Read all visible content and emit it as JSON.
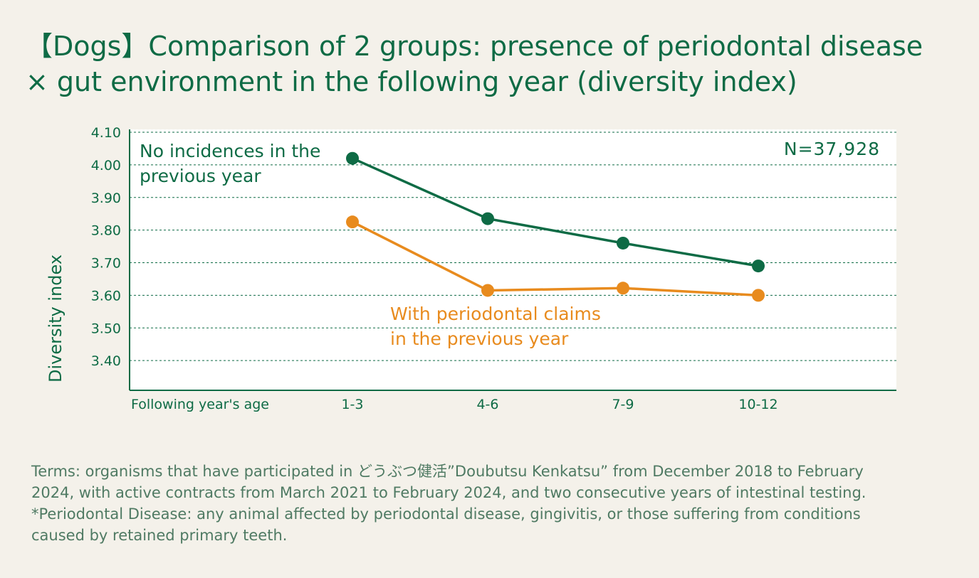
{
  "title": {
    "line1": "【Dogs】Comparison of 2 groups: presence of periodontal disease",
    "line2": "× gut environment in the following year (diversity index)"
  },
  "colors": {
    "background": "#f4f1ea",
    "green": "#0e6b45",
    "orange": "#e88b1e",
    "note_text": "#4f7a63"
  },
  "chart_data": {
    "type": "line",
    "ylabel": "Diversity index",
    "xlabel": "Following year's age",
    "categories": [
      "1-3",
      "4-6",
      "7-9",
      "10-12"
    ],
    "ylim": [
      3.3,
      4.1
    ],
    "yticks": [
      "4.10",
      "4.00",
      "3.90",
      "3.80",
      "3.70",
      "3.60",
      "3.50",
      "3.40"
    ],
    "ytick_values": [
      4.1,
      4.0,
      3.9,
      3.8,
      3.7,
      3.6,
      3.5,
      3.4
    ],
    "grid": true,
    "annotation": "N=37,928",
    "series": [
      {
        "name": "No incidences in the previous year",
        "label_lines": [
          "No incidences in the",
          "previous year"
        ],
        "color": "#0e6b45",
        "values": [
          4.02,
          3.835,
          3.76,
          3.69
        ]
      },
      {
        "name": "With periodontal claims in the previous year",
        "label_lines": [
          "With periodontal claims",
          "in the previous year"
        ],
        "color": "#e88b1e",
        "values": [
          3.825,
          3.615,
          3.622,
          3.6
        ]
      }
    ]
  },
  "notes": {
    "line1": "Terms: organisms that have participated in どうぶつ健活”Doubutsu Kenkatsu” from December 2018 to February",
    "line2": "2024, with active contracts from March 2021 to February 2024, and two consecutive years of intestinal testing.",
    "line3": "*Periodontal Disease: any animal affected by periodontal disease, gingivitis, or those suffering from conditions",
    "line4": "caused by retained primary teeth."
  }
}
